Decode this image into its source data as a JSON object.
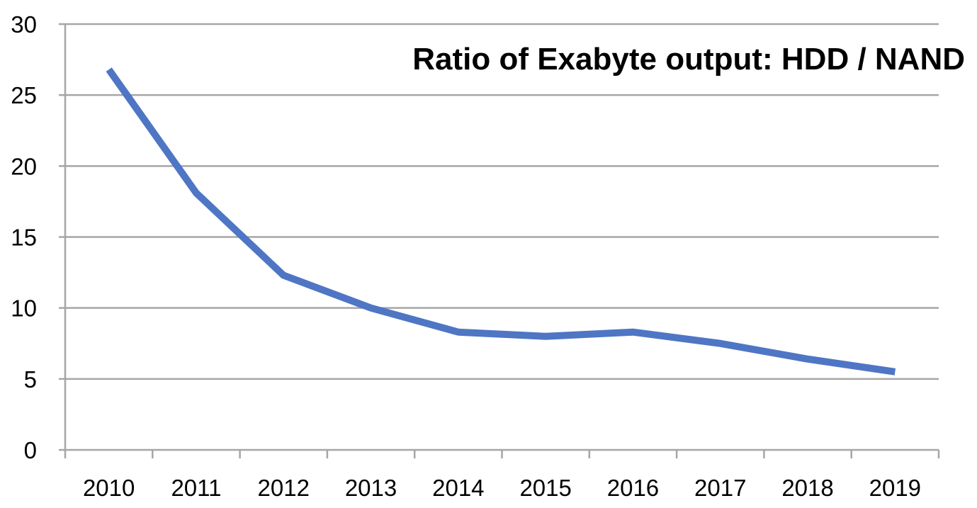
{
  "chart_data": {
    "type": "line",
    "title": "Ratio of Exabyte output: HDD / NAND",
    "xlabel": "",
    "ylabel": "",
    "categories": [
      "2010",
      "2011",
      "2012",
      "2013",
      "2014",
      "2015",
      "2016",
      "2017",
      "2018",
      "2019"
    ],
    "series": [
      {
        "values": [
          26.8,
          18.1,
          12.3,
          10.0,
          8.3,
          8.0,
          8.3,
          7.5,
          6.4,
          5.5
        ]
      }
    ],
    "ylim": [
      0,
      30
    ],
    "yticks": [
      "0",
      "5",
      "10",
      "15",
      "20",
      "25",
      "30"
    ],
    "grid": "horizontal",
    "legend": "none",
    "colors": {
      "line": "#4f76c4",
      "grid": "#a6a6a6",
      "axis": "#a6a6a6"
    }
  }
}
